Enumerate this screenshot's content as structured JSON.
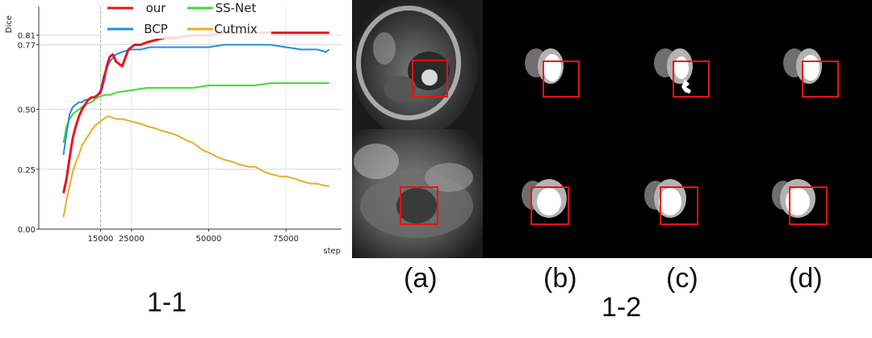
{
  "chart_data": {
    "type": "line",
    "title": "",
    "xlabel": "step",
    "ylabel": "Dice",
    "xlim": [
      -5000,
      93000
    ],
    "ylim": [
      0.0,
      0.93
    ],
    "yticks": [
      0.0,
      0.25,
      0.5,
      0.77,
      0.81
    ],
    "ytick_labels": [
      "0.00",
      "0.25",
      "0.50",
      "0.77",
      "0.81"
    ],
    "xticks": [
      15000,
      25000,
      50000,
      75000
    ],
    "xtick_labels": [
      "15000",
      "25000",
      "50000",
      "75000"
    ],
    "vline_x": 15000,
    "grid": true,
    "legend_position": "top-center",
    "series": [
      {
        "name": "our",
        "color": "#e8161b",
        "x": [
          3000,
          4000,
          5000,
          6000,
          7000,
          8000,
          9000,
          10000,
          11000,
          12000,
          13000,
          14000,
          15000,
          16000,
          17000,
          18000,
          19000,
          20000,
          22000,
          24000,
          26000,
          28000,
          30000,
          33000,
          36000,
          40000,
          45000,
          50000,
          55000,
          60000,
          65000,
          70000,
          75000,
          80000,
          85000,
          88000,
          89000
        ],
        "y": [
          0.15,
          0.21,
          0.3,
          0.38,
          0.43,
          0.47,
          0.5,
          0.52,
          0.54,
          0.55,
          0.55,
          0.56,
          0.57,
          0.62,
          0.68,
          0.72,
          0.73,
          0.7,
          0.68,
          0.75,
          0.77,
          0.77,
          0.78,
          0.79,
          0.8,
          0.8,
          0.81,
          0.81,
          0.82,
          0.82,
          0.82,
          0.82,
          0.82,
          0.82,
          0.82,
          0.82,
          0.82
        ]
      },
      {
        "name": "BCP",
        "color": "#1f8fe0",
        "x": [
          3000,
          4000,
          5000,
          6000,
          7000,
          8000,
          9000,
          10000,
          11000,
          12000,
          13000,
          14000,
          15000,
          16000,
          17000,
          18000,
          20000,
          22000,
          25000,
          28000,
          31000,
          35000,
          40000,
          45000,
          50000,
          55000,
          60000,
          65000,
          70000,
          75000,
          80000,
          85000,
          88000,
          89000
        ],
        "y": [
          0.31,
          0.4,
          0.48,
          0.51,
          0.52,
          0.53,
          0.53,
          0.54,
          0.54,
          0.55,
          0.55,
          0.56,
          0.58,
          0.64,
          0.67,
          0.7,
          0.73,
          0.74,
          0.75,
          0.75,
          0.76,
          0.76,
          0.76,
          0.76,
          0.76,
          0.77,
          0.77,
          0.77,
          0.77,
          0.76,
          0.75,
          0.75,
          0.74,
          0.75
        ]
      },
      {
        "name": "SS-Net",
        "color": "#3ddc3a",
        "x": [
          3000,
          4000,
          5000,
          6000,
          7000,
          8000,
          9000,
          10000,
          12000,
          14000,
          16000,
          18000,
          20000,
          25000,
          30000,
          35000,
          40000,
          45000,
          50000,
          55000,
          60000,
          65000,
          70000,
          75000,
          80000,
          85000,
          89000
        ],
        "y": [
          0.36,
          0.43,
          0.46,
          0.48,
          0.49,
          0.5,
          0.51,
          0.52,
          0.53,
          0.55,
          0.56,
          0.56,
          0.57,
          0.58,
          0.59,
          0.59,
          0.59,
          0.59,
          0.6,
          0.6,
          0.6,
          0.6,
          0.61,
          0.61,
          0.61,
          0.61,
          0.61
        ]
      },
      {
        "name": "Cutmix",
        "color": "#e7ad24",
        "x": [
          3000,
          4000,
          5000,
          6000,
          7000,
          8000,
          9000,
          10000,
          11000,
          12000,
          13000,
          14000,
          15000,
          16000,
          17000,
          18000,
          20000,
          22000,
          25000,
          28000,
          30000,
          33000,
          35000,
          38000,
          40000,
          43000,
          45000,
          48000,
          50000,
          53000,
          55000,
          58000,
          60000,
          63000,
          65000,
          68000,
          70000,
          73000,
          75000,
          78000,
          80000,
          83000,
          85000,
          88000,
          89000
        ],
        "y": [
          0.05,
          0.12,
          0.18,
          0.24,
          0.28,
          0.31,
          0.35,
          0.37,
          0.39,
          0.41,
          0.43,
          0.44,
          0.45,
          0.46,
          0.47,
          0.47,
          0.46,
          0.46,
          0.45,
          0.44,
          0.43,
          0.42,
          0.41,
          0.4,
          0.39,
          0.37,
          0.36,
          0.33,
          0.32,
          0.3,
          0.29,
          0.28,
          0.27,
          0.26,
          0.26,
          0.24,
          0.23,
          0.22,
          0.22,
          0.21,
          0.2,
          0.19,
          0.19,
          0.18,
          0.18
        ]
      }
    ]
  },
  "labels": {
    "figure_left": "1-1",
    "figure_right": "1-2",
    "col_a": "(a)",
    "col_b": "(b)",
    "col_c": "(c)",
    "col_d": "(d)"
  }
}
